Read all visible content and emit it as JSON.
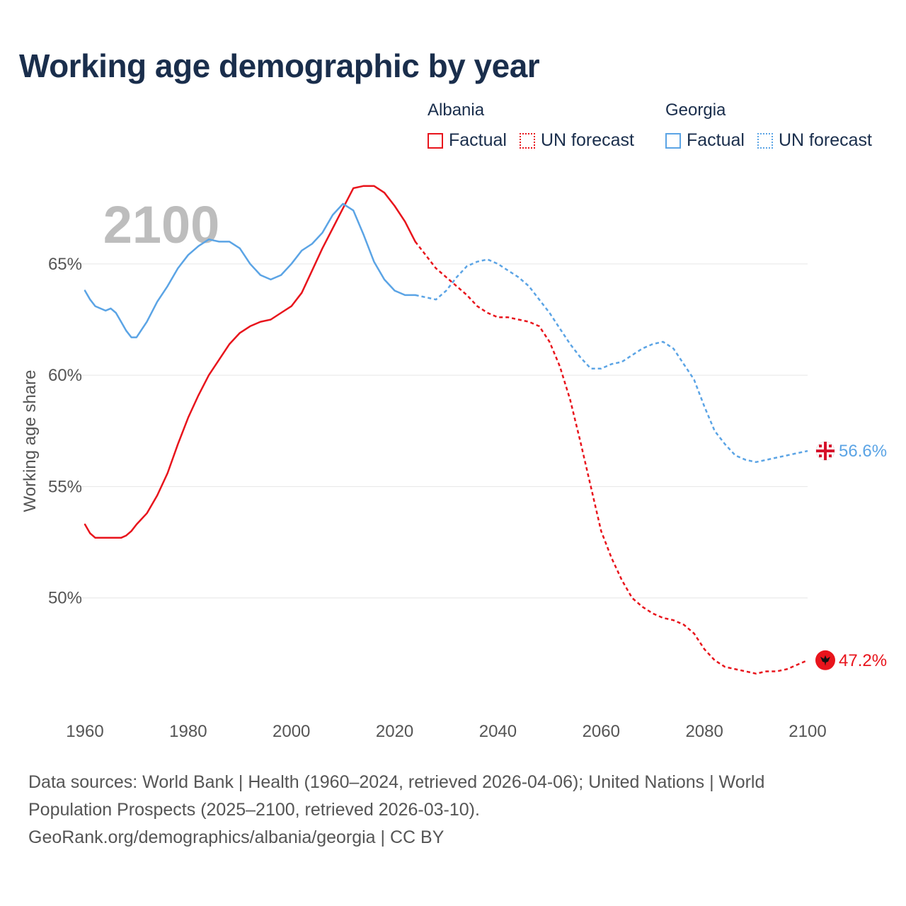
{
  "title": "Working age demographic by year",
  "year_watermark": "2100",
  "legend": {
    "albania": {
      "name": "Albania",
      "factual": "Factual",
      "forecast": "UN forecast",
      "color": "#e8141c"
    },
    "georgia": {
      "name": "Georgia",
      "factual": "Factual",
      "forecast": "UN forecast",
      "color": "#5ba4e5"
    }
  },
  "footer": {
    "line1": "Data sources: World Bank | Health (1960–2024, retrieved 2026-04-06); United Nations | World",
    "line2": "Population Prospects (2025–2100, retrieved 2026-03-10).",
    "line3": "GeoRank.org/demographics/albania/georgia | CC BY"
  },
  "chart_data": {
    "type": "line",
    "title": "Working age demographic by year",
    "xlabel": "",
    "ylabel": "Working age share",
    "xlim": [
      1960,
      2100
    ],
    "ylim": [
      45,
      69
    ],
    "x_ticks": [
      1960,
      1980,
      2000,
      2020,
      2040,
      2060,
      2080,
      2100
    ],
    "x_tick_labels": [
      "1960",
      "1980",
      "2000",
      "2020",
      "2040",
      "2060",
      "2080",
      "2100"
    ],
    "y_ticks": [
      50,
      55,
      60,
      65
    ],
    "y_tick_labels": [
      "50%",
      "55%",
      "60%",
      "65%"
    ],
    "factual_end_year": 2024,
    "series": [
      {
        "name": "Albania",
        "color": "#e8141c",
        "end_label": "47.2%",
        "points": [
          [
            1960,
            53.3
          ],
          [
            1961,
            52.9
          ],
          [
            1962,
            52.7
          ],
          [
            1964,
            52.7
          ],
          [
            1966,
            52.7
          ],
          [
            1967,
            52.7
          ],
          [
            1968,
            52.8
          ],
          [
            1969,
            53.0
          ],
          [
            1970,
            53.3
          ],
          [
            1972,
            53.8
          ],
          [
            1974,
            54.6
          ],
          [
            1976,
            55.6
          ],
          [
            1978,
            56.9
          ],
          [
            1980,
            58.1
          ],
          [
            1982,
            59.1
          ],
          [
            1984,
            60.0
          ],
          [
            1986,
            60.7
          ],
          [
            1988,
            61.4
          ],
          [
            1990,
            61.9
          ],
          [
            1992,
            62.2
          ],
          [
            1994,
            62.4
          ],
          [
            1996,
            62.5
          ],
          [
            1998,
            62.8
          ],
          [
            2000,
            63.1
          ],
          [
            2002,
            63.7
          ],
          [
            2004,
            64.7
          ],
          [
            2006,
            65.7
          ],
          [
            2008,
            66.6
          ],
          [
            2010,
            67.5
          ],
          [
            2012,
            68.4
          ],
          [
            2014,
            68.5
          ],
          [
            2016,
            68.5
          ],
          [
            2018,
            68.2
          ],
          [
            2020,
            67.6
          ],
          [
            2022,
            66.9
          ],
          [
            2024,
            66.0
          ],
          [
            2026,
            65.4
          ],
          [
            2028,
            64.8
          ],
          [
            2030,
            64.4
          ],
          [
            2032,
            64.0
          ],
          [
            2034,
            63.6
          ],
          [
            2036,
            63.1
          ],
          [
            2038,
            62.8
          ],
          [
            2040,
            62.6
          ],
          [
            2042,
            62.6
          ],
          [
            2044,
            62.5
          ],
          [
            2046,
            62.4
          ],
          [
            2048,
            62.2
          ],
          [
            2050,
            61.5
          ],
          [
            2052,
            60.4
          ],
          [
            2054,
            58.9
          ],
          [
            2056,
            57.0
          ],
          [
            2058,
            55.0
          ],
          [
            2060,
            53.0
          ],
          [
            2062,
            51.8
          ],
          [
            2064,
            50.8
          ],
          [
            2066,
            50.0
          ],
          [
            2068,
            49.6
          ],
          [
            2070,
            49.3
          ],
          [
            2072,
            49.1
          ],
          [
            2074,
            49.0
          ],
          [
            2076,
            48.8
          ],
          [
            2078,
            48.4
          ],
          [
            2080,
            47.7
          ],
          [
            2082,
            47.2
          ],
          [
            2084,
            46.9
          ],
          [
            2086,
            46.8
          ],
          [
            2088,
            46.7
          ],
          [
            2090,
            46.6
          ],
          [
            2092,
            46.7
          ],
          [
            2094,
            46.7
          ],
          [
            2096,
            46.8
          ],
          [
            2098,
            47.0
          ],
          [
            2100,
            47.2
          ]
        ]
      },
      {
        "name": "Georgia",
        "color": "#5ba4e5",
        "end_label": "56.6%",
        "points": [
          [
            1960,
            63.8
          ],
          [
            1961,
            63.4
          ],
          [
            1962,
            63.1
          ],
          [
            1964,
            62.9
          ],
          [
            1965,
            63.0
          ],
          [
            1966,
            62.8
          ],
          [
            1967,
            62.4
          ],
          [
            1968,
            62.0
          ],
          [
            1969,
            61.7
          ],
          [
            1970,
            61.7
          ],
          [
            1972,
            62.4
          ],
          [
            1974,
            63.3
          ],
          [
            1976,
            64.0
          ],
          [
            1978,
            64.8
          ],
          [
            1980,
            65.4
          ],
          [
            1982,
            65.8
          ],
          [
            1984,
            66.1
          ],
          [
            1986,
            66.0
          ],
          [
            1988,
            66.0
          ],
          [
            1990,
            65.7
          ],
          [
            1992,
            65.0
          ],
          [
            1994,
            64.5
          ],
          [
            1996,
            64.3
          ],
          [
            1998,
            64.5
          ],
          [
            2000,
            65.0
          ],
          [
            2002,
            65.6
          ],
          [
            2004,
            65.9
          ],
          [
            2006,
            66.4
          ],
          [
            2008,
            67.2
          ],
          [
            2010,
            67.7
          ],
          [
            2012,
            67.4
          ],
          [
            2014,
            66.3
          ],
          [
            2016,
            65.1
          ],
          [
            2018,
            64.3
          ],
          [
            2020,
            63.8
          ],
          [
            2022,
            63.6
          ],
          [
            2024,
            63.6
          ],
          [
            2026,
            63.5
          ],
          [
            2028,
            63.4
          ],
          [
            2030,
            63.8
          ],
          [
            2032,
            64.4
          ],
          [
            2034,
            64.9
          ],
          [
            2036,
            65.1
          ],
          [
            2038,
            65.2
          ],
          [
            2040,
            65.0
          ],
          [
            2042,
            64.7
          ],
          [
            2044,
            64.4
          ],
          [
            2046,
            64.0
          ],
          [
            2048,
            63.4
          ],
          [
            2050,
            62.8
          ],
          [
            2052,
            62.1
          ],
          [
            2054,
            61.4
          ],
          [
            2056,
            60.8
          ],
          [
            2058,
            60.3
          ],
          [
            2060,
            60.3
          ],
          [
            2062,
            60.5
          ],
          [
            2064,
            60.6
          ],
          [
            2066,
            60.9
          ],
          [
            2068,
            61.2
          ],
          [
            2070,
            61.4
          ],
          [
            2072,
            61.5
          ],
          [
            2074,
            61.2
          ],
          [
            2076,
            60.5
          ],
          [
            2078,
            59.8
          ],
          [
            2080,
            58.6
          ],
          [
            2082,
            57.5
          ],
          [
            2084,
            56.9
          ],
          [
            2086,
            56.4
          ],
          [
            2088,
            56.2
          ],
          [
            2090,
            56.1
          ],
          [
            2092,
            56.2
          ],
          [
            2094,
            56.3
          ],
          [
            2096,
            56.4
          ],
          [
            2098,
            56.5
          ],
          [
            2100,
            56.6
          ]
        ]
      }
    ]
  }
}
